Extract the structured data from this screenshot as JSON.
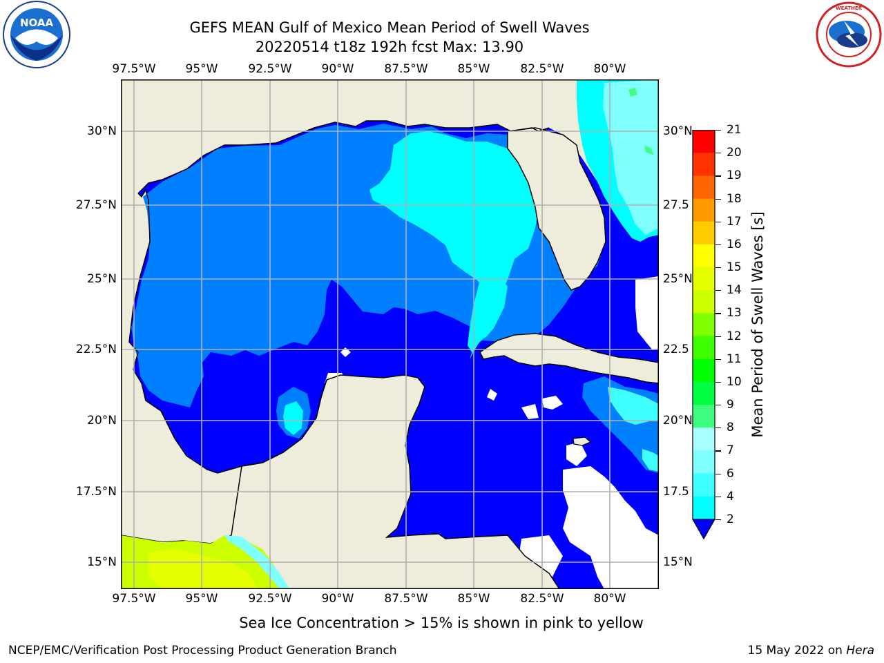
{
  "header": {
    "title_line1": "GEFS MEAN Gulf of Mexico Mean Period of Swell Waves",
    "title_line2": "20220514 t18z 192h fcst   Max: 13.90"
  },
  "logos": {
    "left": {
      "icon": "noaa-logo",
      "text": "NOAA"
    },
    "right": {
      "icon": "nws-logo",
      "text": "NATIONAL WEATHER SERVICE"
    }
  },
  "map": {
    "lon_labels": [
      "97.5°W",
      "95°W",
      "92.5°W",
      "90°W",
      "87.5°W",
      "85°W",
      "82.5°W",
      "80°W"
    ],
    "lat_labels_left": [
      "30°N",
      "27.5°N",
      "25°N",
      "22.5°N",
      "20°N",
      "17.5°N",
      "15°N"
    ],
    "lat_labels_right": [
      "30°N",
      "27.5",
      "25°N",
      "22.5",
      "20°N",
      "17.5",
      "15°N"
    ],
    "land_color": "#eeeddb",
    "ocean_fill_colors": [
      "#0000ff",
      "#0080ff",
      "#00ffff",
      "#40ffff",
      "#80ffff",
      "#ccff00",
      "#e6ff00",
      "#40ff80"
    ]
  },
  "colorbar": {
    "label": "Mean Period of Swell Waves [s]",
    "ticks": [
      "2",
      "4",
      "6",
      "7",
      "8",
      "9",
      "10",
      "11",
      "12",
      "13",
      "14",
      "15",
      "16",
      "17",
      "18",
      "19",
      "20",
      "21"
    ],
    "colors": [
      "#0080ff",
      "#00ffff",
      "#40ffff",
      "#80ffff",
      "#aaffff",
      "#40ff80",
      "#00ff40",
      "#00ff00",
      "#40ff00",
      "#80ff00",
      "#ccff00",
      "#e6ff00",
      "#ffff00",
      "#ffcc00",
      "#ff9900",
      "#ff6600",
      "#ff3300",
      "#ff0000"
    ],
    "under_color": "#0000ff"
  },
  "note": "Sea Ice Concentration > 15% is shown in pink to yellow",
  "footer": {
    "left": "NCEP/EMC/Verification Post Processing Product Generation Branch",
    "right_date": "15 May 2022 on ",
    "right_host": "Hera"
  }
}
